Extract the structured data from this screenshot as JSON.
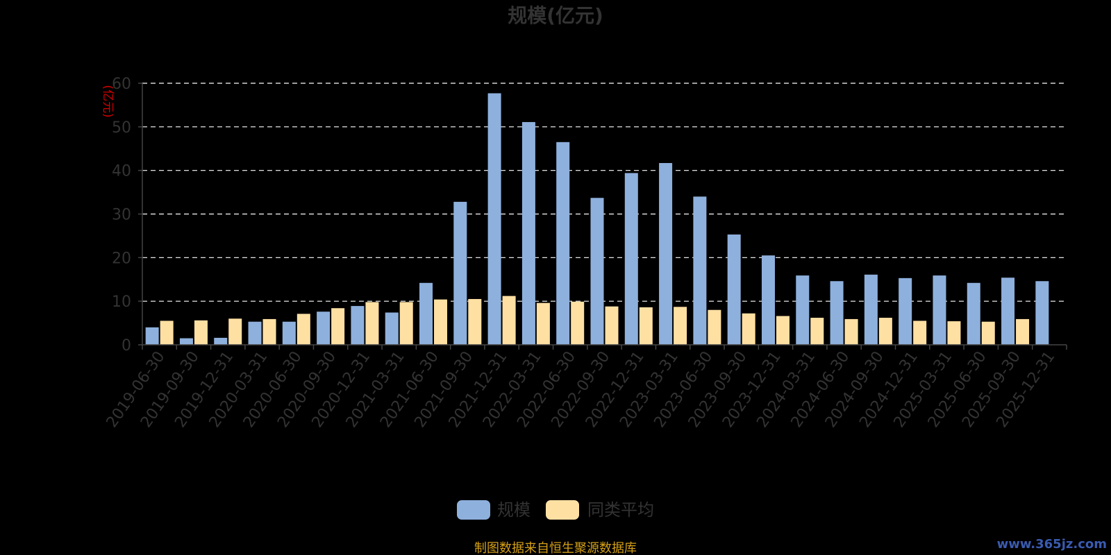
{
  "chart_data": {
    "type": "bar",
    "title": "规模(亿元)",
    "y_unit": "(亿元)",
    "ylim": [
      0,
      60
    ],
    "y_ticks": [
      "0",
      "10",
      "20",
      "30",
      "40",
      "50",
      "60"
    ],
    "grid": true,
    "legend_position": "bottom",
    "categories": [
      "2019-06-30",
      "2019-09-30",
      "2019-12-31",
      "2020-03-31",
      "2020-06-30",
      "2020-09-30",
      "2020-12-31",
      "2021-03-31",
      "2021-06-30",
      "2021-09-30",
      "2021-12-31",
      "2022-03-31",
      "2022-06-30",
      "2022-09-30",
      "2022-12-31",
      "2023-03-31",
      "2023-06-30",
      "2023-09-30",
      "2023-12-31",
      "2024-03-31",
      "2024-06-30",
      "2024-09-30",
      "2024-12-31",
      "2025-03-31",
      "2025-06-30",
      "2025-09-30",
      "2025-12-31"
    ],
    "series": [
      {
        "name": "规模",
        "color": "#8eb0dd",
        "values": [
          4.0,
          1.5,
          1.6,
          5.3,
          5.3,
          7.6,
          8.9,
          7.4,
          14.2,
          32.8,
          57.7,
          51.1,
          46.5,
          33.7,
          39.4,
          41.7,
          34.0,
          25.3,
          20.5,
          15.9,
          14.6,
          16.1,
          15.3,
          15.9,
          14.2,
          15.4,
          14.6
        ]
      },
      {
        "name": "同类平均",
        "color": "#ffe0a3",
        "values": [
          5.5,
          5.6,
          6.0,
          5.9,
          7.1,
          8.4,
          9.8,
          9.8,
          10.4,
          10.5,
          11.2,
          9.6,
          9.9,
          8.8,
          8.6,
          8.7,
          8.0,
          7.2,
          6.6,
          6.2,
          5.9,
          6.2,
          5.5,
          5.4,
          5.3,
          5.9,
          null
        ]
      }
    ]
  },
  "footer": {
    "source": "制图数据来自恒生聚源数据库",
    "watermark": "www.365jz.com"
  }
}
